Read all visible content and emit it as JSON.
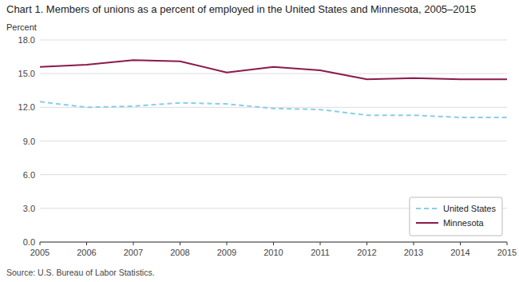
{
  "chart_data": {
    "type": "line",
    "title": "Chart 1. Members of unions as a percent of employed in the United States and Minnesota, 2005–2015",
    "ylabel": "Percent",
    "annotations": [
      "Source: U.S. Bureau of Labor Statistics."
    ],
    "x": [
      2005,
      2006,
      2007,
      2008,
      2009,
      2010,
      2011,
      2012,
      2013,
      2014,
      2015
    ],
    "series": [
      {
        "name": "United States",
        "color": "#87CEEB",
        "line_style": "dashed",
        "values": [
          12.5,
          12.0,
          12.1,
          12.4,
          12.3,
          11.9,
          11.8,
          11.3,
          11.3,
          11.1,
          11.1
        ]
      },
      {
        "name": "Minnesota",
        "color": "#8B1A4A",
        "line_style": "solid",
        "values": [
          15.6,
          15.8,
          16.2,
          16.1,
          15.1,
          15.6,
          15.3,
          14.5,
          14.6,
          14.5,
          14.5
        ]
      }
    ],
    "xlim": [
      2005,
      2015
    ],
    "xticks": [
      2005,
      2006,
      2007,
      2008,
      2009,
      2010,
      2011,
      2012,
      2013,
      2014,
      2015
    ],
    "ylim": [
      0.0,
      18.0
    ],
    "yticks": [
      {
        "value": 0.0,
        "label": "0.0"
      },
      {
        "value": 3.0,
        "label": "3.0"
      },
      {
        "value": 6.0,
        "label": "6.0"
      },
      {
        "value": 9.0,
        "label": "9.0"
      },
      {
        "value": 12.0,
        "label": "12.0"
      },
      {
        "value": 15.0,
        "label": "15.0"
      },
      {
        "value": 18.0,
        "label": "18.0"
      }
    ],
    "grid": true,
    "legend": "lower right"
  }
}
